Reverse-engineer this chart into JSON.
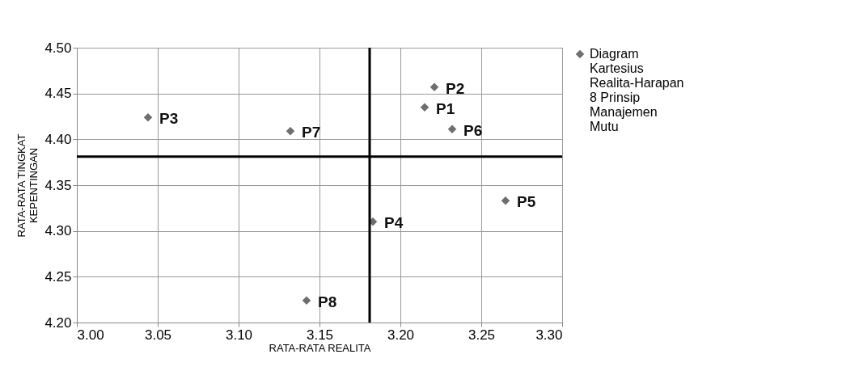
{
  "chart_data": {
    "type": "scatter",
    "xlabel": "RATA-RATA REALITA",
    "ylabel": "RATA-RATA TINGKAT KEPENTINGAN",
    "x": [
      3.215,
      3.221,
      3.044,
      3.183,
      3.265,
      3.232,
      3.132,
      3.142
    ],
    "series": [
      {
        "name": "Diagram Kartesius Realita-Harapan 8 Prinsip Manajemen Mutu",
        "color": "#6e6e6e",
        "values": [
          4.435,
          4.457,
          4.424,
          4.31,
          4.333,
          4.411,
          4.409,
          4.224
        ]
      }
    ],
    "xlim": [
      3.0,
      3.3
    ],
    "xticks": [
      {
        "value": 3.0,
        "label": "3.00"
      },
      {
        "value": 3.05,
        "label": "3.05"
      },
      {
        "value": 3.1,
        "label": "3.10"
      },
      {
        "value": 3.15,
        "label": "3.15"
      },
      {
        "value": 3.2,
        "label": "3.20"
      },
      {
        "value": 3.25,
        "label": "3.25"
      },
      {
        "value": 3.3,
        "label": "3.30"
      }
    ],
    "ylim": [
      4.2,
      4.5
    ],
    "yticks": [
      {
        "value": 4.2,
        "label": "4.20"
      },
      {
        "value": 4.25,
        "label": "4.25"
      },
      {
        "value": 4.3,
        "label": "4.30"
      },
      {
        "value": 4.35,
        "label": "4.35"
      },
      {
        "value": 4.4,
        "label": "4.40"
      },
      {
        "value": 4.45,
        "label": "4.45"
      },
      {
        "value": 4.5,
        "label": "4.50"
      }
    ],
    "ref_lines": [
      {
        "axis": "x",
        "value": 3.181,
        "color": "#000000"
      },
      {
        "axis": "y",
        "value": 4.381,
        "color": "#000000"
      }
    ],
    "annotations": [
      {
        "text": "P1",
        "x": 3.215,
        "y": 4.435
      },
      {
        "text": "P2",
        "x": 3.221,
        "y": 4.457
      },
      {
        "text": "P3",
        "x": 3.044,
        "y": 4.424
      },
      {
        "text": "P4",
        "x": 3.183,
        "y": 4.31
      },
      {
        "text": "P5",
        "x": 3.265,
        "y": 4.333
      },
      {
        "text": "P6",
        "x": 3.232,
        "y": 4.411
      },
      {
        "text": "P7",
        "x": 3.132,
        "y": 4.409
      },
      {
        "text": "P8",
        "x": 3.142,
        "y": 4.224
      }
    ],
    "grid": true,
    "legend": "top right",
    "marker": "diamond"
  }
}
